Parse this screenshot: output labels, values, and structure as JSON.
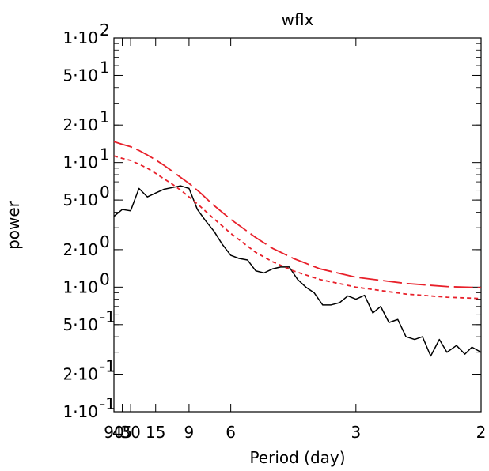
{
  "chart_data": {
    "type": "line",
    "title": "wflx",
    "xlabel": "Period (day)",
    "ylabel": "power",
    "x_scale": "reciprocal",
    "y_scale": "log",
    "xlim": [
      90,
      2
    ],
    "ylim": [
      0.1,
      100
    ],
    "x_ticks": [
      {
        "value": 90,
        "label": "90"
      },
      {
        "value": 45,
        "label": "45"
      },
      {
        "value": 30,
        "label": "30"
      },
      {
        "value": 15,
        "label": "15"
      },
      {
        "value": 9,
        "label": "9"
      },
      {
        "value": 6,
        "label": "6"
      },
      {
        "value": 3,
        "label": "3"
      },
      {
        "value": 2,
        "label": "2"
      }
    ],
    "y_ticks": [
      {
        "value": 0.1,
        "mantissa": "1",
        "exponent": "-1"
      },
      {
        "value": 0.2,
        "mantissa": "2",
        "exponent": "-1"
      },
      {
        "value": 0.5,
        "mantissa": "5",
        "exponent": "-1"
      },
      {
        "value": 1,
        "mantissa": "1",
        "exponent": "0"
      },
      {
        "value": 2,
        "mantissa": "2",
        "exponent": "0"
      },
      {
        "value": 5,
        "mantissa": "5",
        "exponent": "0"
      },
      {
        "value": 10,
        "mantissa": "1",
        "exponent": "1"
      },
      {
        "value": 20,
        "mantissa": "2",
        "exponent": "1"
      },
      {
        "value": 50,
        "mantissa": "5",
        "exponent": "1"
      },
      {
        "value": 100,
        "mantissa": "1",
        "exponent": "2"
      }
    ],
    "series": [
      {
        "color": "#000000",
        "style": "solid",
        "points": [
          [
            90,
            3.7
          ],
          [
            45,
            4.2
          ],
          [
            30,
            4.1
          ],
          [
            22.5,
            6.2
          ],
          [
            18,
            5.3
          ],
          [
            15,
            5.7
          ],
          [
            12.9,
            6.1
          ],
          [
            11.25,
            6.3
          ],
          [
            10,
            6.5
          ],
          [
            9,
            6.2
          ],
          [
            8.18,
            4.2
          ],
          [
            7.5,
            3.4
          ],
          [
            6.92,
            2.8
          ],
          [
            6.43,
            2.2
          ],
          [
            6,
            1.8
          ],
          [
            5.63,
            1.7
          ],
          [
            5.29,
            1.65
          ],
          [
            5,
            1.35
          ],
          [
            4.74,
            1.3
          ],
          [
            4.5,
            1.4
          ],
          [
            4.29,
            1.45
          ],
          [
            4.09,
            1.45
          ],
          [
            3.91,
            1.15
          ],
          [
            3.75,
            1.0
          ],
          [
            3.6,
            0.9
          ],
          [
            3.46,
            0.72
          ],
          [
            3.33,
            0.72
          ],
          [
            3.21,
            0.75
          ],
          [
            3.1,
            0.85
          ],
          [
            3,
            0.8
          ],
          [
            2.9,
            0.86
          ],
          [
            2.81,
            0.62
          ],
          [
            2.73,
            0.7
          ],
          [
            2.65,
            0.52
          ],
          [
            2.57,
            0.55
          ],
          [
            2.5,
            0.4
          ],
          [
            2.43,
            0.38
          ],
          [
            2.37,
            0.4
          ],
          [
            2.31,
            0.28
          ],
          [
            2.25,
            0.38
          ],
          [
            2.2,
            0.3
          ],
          [
            2.14,
            0.34
          ],
          [
            2.09,
            0.29
          ],
          [
            2.05,
            0.33
          ],
          [
            2,
            0.3
          ]
        ]
      },
      {
        "color": "#e8202a",
        "style": "dashed",
        "points": [
          [
            90,
            11.3
          ],
          [
            45,
            10.8
          ],
          [
            30,
            10.4
          ],
          [
            22.5,
            9.7
          ],
          [
            18,
            9.0
          ],
          [
            15,
            8.2
          ],
          [
            12.86,
            7.4
          ],
          [
            11.25,
            6.7
          ],
          [
            10,
            6.0
          ],
          [
            9,
            5.3
          ],
          [
            8,
            4.5
          ],
          [
            7,
            3.6
          ],
          [
            6,
            2.7
          ],
          [
            5,
            1.9
          ],
          [
            4.5,
            1.6
          ],
          [
            4,
            1.35
          ],
          [
            3.5,
            1.15
          ],
          [
            3,
            1.0
          ],
          [
            2.5,
            0.88
          ],
          [
            2.2,
            0.83
          ],
          [
            2,
            0.81
          ]
        ]
      },
      {
        "color": "#e8202a",
        "style": "long-dashed",
        "points": [
          [
            90,
            14.7
          ],
          [
            45,
            14.0
          ],
          [
            30,
            13.4
          ],
          [
            22.5,
            12.5
          ],
          [
            18,
            11.5
          ],
          [
            15,
            10.5
          ],
          [
            12.86,
            9.5
          ],
          [
            11.25,
            8.5
          ],
          [
            10,
            7.6
          ],
          [
            9,
            6.8
          ],
          [
            8,
            5.8
          ],
          [
            7,
            4.6
          ],
          [
            6,
            3.5
          ],
          [
            5,
            2.5
          ],
          [
            4.5,
            2.05
          ],
          [
            4,
            1.7
          ],
          [
            3.5,
            1.4
          ],
          [
            3,
            1.2
          ],
          [
            2.5,
            1.07
          ],
          [
            2.2,
            1.01
          ],
          [
            2,
            0.99
          ]
        ]
      }
    ]
  }
}
